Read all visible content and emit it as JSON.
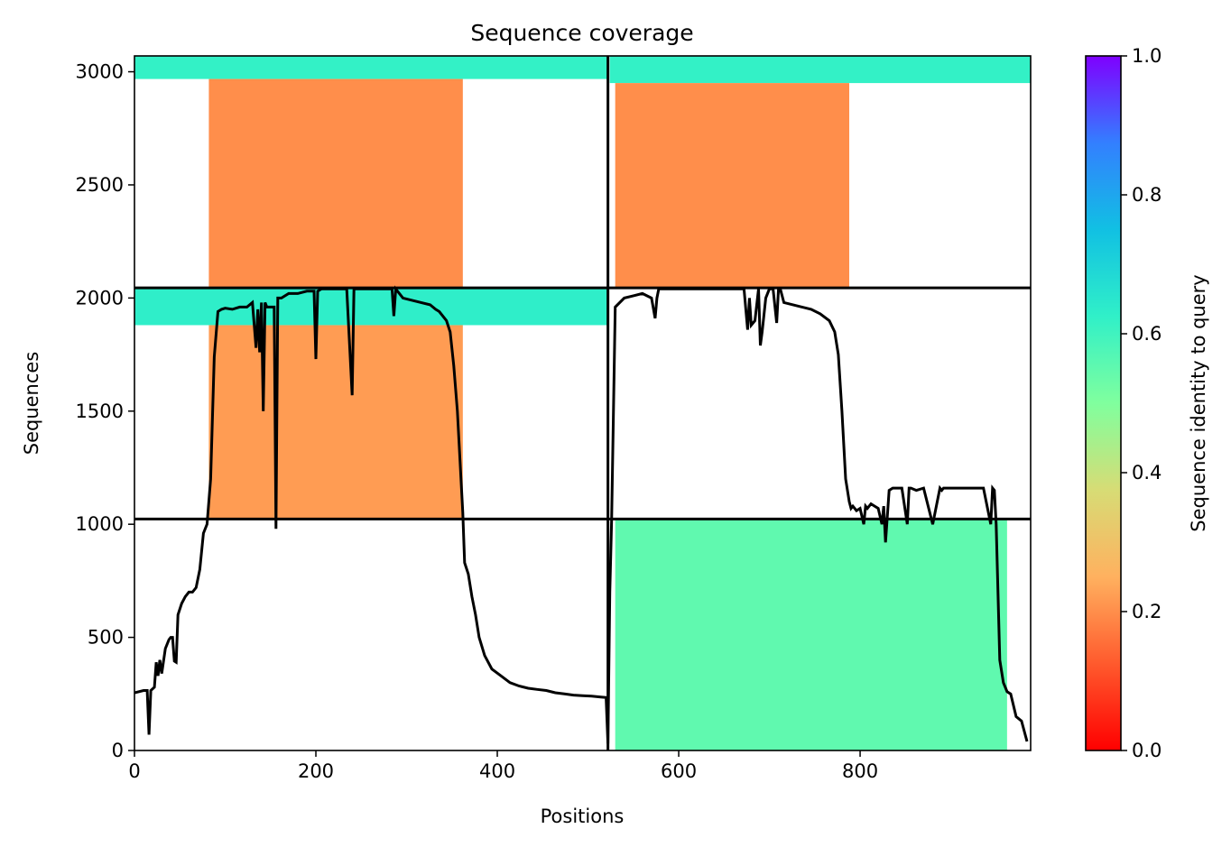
{
  "chart_data": {
    "type": "heatmap",
    "title": "Sequence coverage",
    "xlabel": "Positions",
    "ylabel": "Sequences",
    "xlim": [
      0,
      988
    ],
    "ylim": [
      0,
      3070
    ],
    "xticks": [
      0,
      200,
      400,
      600,
      800
    ],
    "yticks": [
      0,
      500,
      1000,
      1500,
      2000,
      2500,
      3000
    ],
    "grid": false,
    "colorbar": {
      "label": "Sequence identity to query",
      "range": [
        0,
        1
      ],
      "ticks": [
        0.0,
        0.2,
        0.4,
        0.6,
        0.8,
        1.0
      ],
      "tick_labels": [
        "0.0",
        "0.2",
        "0.4",
        "0.6",
        "0.8",
        "1.0"
      ],
      "colormap": "rainbow_r"
    },
    "dividers": {
      "vertical_x": [
        522
      ],
      "horizontal_y": [
        1023,
        2045
      ]
    },
    "coverage_blocks": [
      {
        "x0": 0,
        "x1": 522,
        "y0": 2968,
        "y1": 3070,
        "identity": 0.62
      },
      {
        "x0": 82,
        "x1": 362,
        "y0": 2045,
        "y1": 2968,
        "identity": 0.2
      },
      {
        "x0": 0,
        "x1": 522,
        "y0": 1880,
        "y1": 2045,
        "identity": 0.63
      },
      {
        "x0": 82,
        "x1": 362,
        "y0": 1023,
        "y1": 1880,
        "identity": 0.22
      },
      {
        "x0": 524,
        "x1": 988,
        "y0": 2950,
        "y1": 3070,
        "identity": 0.62
      },
      {
        "x0": 530,
        "x1": 788,
        "y0": 2045,
        "y1": 2950,
        "identity": 0.2
      },
      {
        "x0": 530,
        "x1": 962,
        "y0": 0,
        "y1": 1023,
        "identity": 0.55
      }
    ],
    "coverage_line": {
      "x": [
        0,
        10,
        14,
        16,
        18,
        22,
        24,
        26,
        28,
        30,
        34,
        38,
        40,
        42,
        44,
        46,
        48,
        52,
        56,
        60,
        64,
        68,
        72,
        76,
        80,
        84,
        88,
        92,
        96,
        100,
        108,
        116,
        124,
        130,
        134,
        136,
        138,
        140,
        142,
        144,
        146,
        150,
        154,
        156,
        158,
        162,
        170,
        180,
        190,
        198,
        200,
        202,
        206,
        214,
        224,
        234,
        240,
        242,
        244,
        248,
        256,
        266,
        276,
        284,
        286,
        288,
        296,
        306,
        316,
        326,
        332,
        336,
        340,
        344,
        348,
        352,
        356,
        360,
        362,
        364,
        368,
        372,
        376,
        380,
        386,
        394,
        404,
        414,
        424,
        434,
        444,
        454,
        464,
        474,
        484,
        494,
        504,
        514,
        520,
        522,
        524,
        526,
        530,
        540,
        550,
        560,
        570,
        574,
        576,
        578,
        586,
        596,
        606,
        616,
        626,
        636,
        646,
        656,
        666,
        672,
        676,
        678,
        680,
        684,
        688,
        690,
        692,
        696,
        700,
        704,
        708,
        710,
        712,
        716,
        726,
        736,
        746,
        756,
        766,
        772,
        776,
        780,
        784,
        788,
        790,
        792,
        796,
        800,
        804,
        806,
        808,
        812,
        816,
        820,
        824,
        826,
        828,
        832,
        836,
        846,
        852,
        854,
        856,
        862,
        870,
        880,
        888,
        890,
        892,
        896,
        906,
        916,
        926,
        936,
        944,
        946,
        948,
        950,
        954,
        958,
        962,
        966,
        972,
        978,
        984,
        988
      ],
      "y": [
        255,
        265,
        265,
        70,
        265,
        280,
        390,
        330,
        400,
        340,
        450,
        490,
        500,
        500,
        395,
        390,
        600,
        650,
        680,
        700,
        700,
        720,
        800,
        960,
        1000,
        1200,
        1740,
        1940,
        1950,
        1955,
        1950,
        1960,
        1960,
        1980,
        1780,
        1950,
        1760,
        1980,
        1500,
        1980,
        1960,
        1960,
        1960,
        980,
        2000,
        2000,
        2020,
        2020,
        2030,
        2030,
        1730,
        2030,
        2040,
        2040,
        2040,
        2040,
        1570,
        2040,
        2040,
        2040,
        2040,
        2040,
        2040,
        2040,
        1920,
        2040,
        2000,
        1990,
        1980,
        1970,
        1950,
        1940,
        1920,
        1900,
        1850,
        1700,
        1500,
        1200,
        1050,
        830,
        780,
        680,
        600,
        500,
        420,
        360,
        330,
        300,
        285,
        275,
        270,
        265,
        255,
        250,
        245,
        242,
        240,
        236,
        234,
        30,
        700,
        1020,
        1960,
        2000,
        2010,
        2020,
        2000,
        1910,
        2000,
        2040,
        2040,
        2040,
        2040,
        2040,
        2040,
        2040,
        2040,
        2040,
        2040,
        2040,
        1860,
        2000,
        1880,
        1900,
        2040,
        1790,
        1850,
        2000,
        2040,
        2040,
        1890,
        2040,
        2040,
        1980,
        1970,
        1960,
        1950,
        1930,
        1900,
        1850,
        1750,
        1500,
        1200,
        1100,
        1070,
        1080,
        1060,
        1070,
        1000,
        1080,
        1070,
        1090,
        1080,
        1070,
        1000,
        1080,
        920,
        1150,
        1160,
        1160,
        1000,
        1160,
        1160,
        1150,
        1160,
        1000,
        1160,
        1150,
        1160,
        1160,
        1160,
        1160,
        1160,
        1160,
        1000,
        1160,
        1150,
        1000,
        400,
        300,
        260,
        250,
        150,
        130,
        40
      ]
    }
  }
}
